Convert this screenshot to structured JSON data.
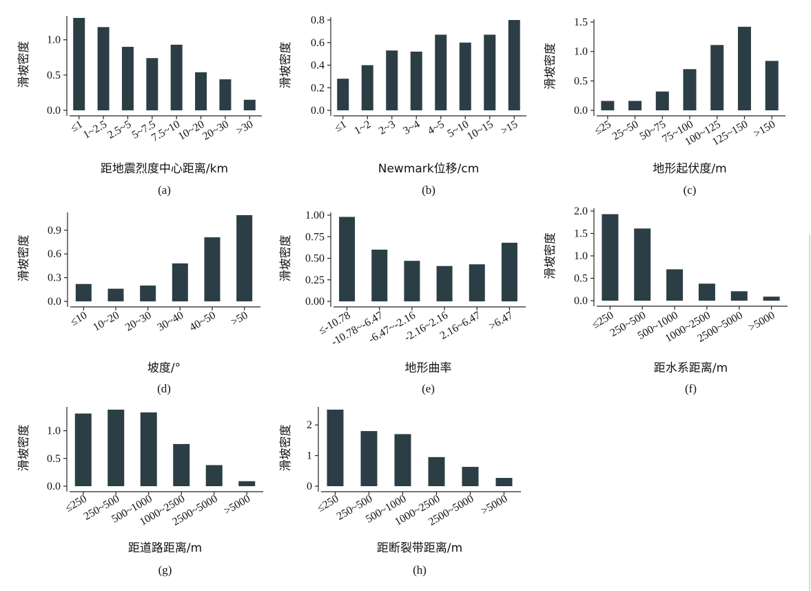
{
  "chart_data": [
    {
      "type": "bar",
      "tag": "(a)",
      "xlabel": "距地震烈度中心距离/km",
      "ylabel": "滑坡密度",
      "categories": [
        "≤1",
        "1~2.5",
        "2.5~5",
        "5~7.5",
        "7.5~10",
        "10~20",
        "20~30",
        ">30"
      ],
      "values": [
        1.31,
        1.18,
        0.9,
        0.74,
        0.93,
        0.54,
        0.44,
        0.15
      ],
      "ylim": [
        0,
        1.3
      ],
      "yticks": [
        "0.0",
        "0.5",
        "1.0"
      ],
      "grid": false
    },
    {
      "type": "bar",
      "tag": "(b)",
      "xlabel": "Newmark位移/cm",
      "ylabel": "滑坡密度",
      "categories": [
        "≤1",
        "1~2",
        "2~3",
        "3~4",
        "4~5",
        "5~10",
        "10~15",
        ">15"
      ],
      "values": [
        0.28,
        0.4,
        0.53,
        0.52,
        0.67,
        0.6,
        0.67,
        0.8
      ],
      "ylim": [
        0,
        0.8
      ],
      "yticks": [
        "0.0",
        "0.2",
        "0.4",
        "0.6",
        "0.8"
      ],
      "grid": false
    },
    {
      "type": "bar",
      "tag": "(c)",
      "xlabel": "地形起伏度/m",
      "ylabel": "滑坡密度",
      "categories": [
        "≤25",
        "25~50",
        "50~75",
        "75~100",
        "100~125",
        "125~150",
        ">150"
      ],
      "values": [
        0.16,
        0.16,
        0.32,
        0.7,
        1.11,
        1.42,
        0.84
      ],
      "ylim": [
        0,
        1.5
      ],
      "yticks": [
        "0.0",
        "0.5",
        "1.0",
        "1.5"
      ],
      "grid": false
    },
    {
      "type": "bar",
      "tag": "(d)",
      "xlabel": "坡度/°",
      "ylabel": "滑坡密度",
      "categories": [
        "≤10",
        "10~20",
        "20~30",
        "30~40",
        "40~50",
        ">50"
      ],
      "values": [
        0.22,
        0.16,
        0.2,
        0.48,
        0.81,
        1.09
      ],
      "ylim": [
        0,
        1.09
      ],
      "yticks": [
        "0.0",
        "0.3",
        "0.6",
        "0.9"
      ],
      "grid": false
    },
    {
      "type": "bar",
      "tag": "(e)",
      "xlabel": "地形曲率",
      "ylabel": "滑坡密度",
      "categories": [
        "≤-10.78",
        "-10.78~-6.47",
        "-6.47~-2.16",
        "-2.16~2.16",
        "2.16~6.47",
        ">6.47"
      ],
      "values": [
        0.98,
        0.6,
        0.47,
        0.41,
        0.43,
        0.68
      ],
      "ylim": [
        0,
        1.0
      ],
      "yticks": [
        "0.00",
        "0.25",
        "0.50",
        "0.75",
        "1.00"
      ],
      "grid": false
    },
    {
      "type": "bar",
      "tag": "(f)",
      "xlabel": "距水系距离/m",
      "ylabel": "滑坡密度",
      "categories": [
        "≤250",
        "250~500",
        "500~1000",
        "1000~2500",
        "2500~5000",
        ">5000"
      ],
      "values": [
        1.93,
        1.61,
        0.7,
        0.38,
        0.21,
        0.09
      ],
      "ylim": [
        0,
        2.0
      ],
      "yticks": [
        "0.0",
        "0.5",
        "1.0",
        "1.5",
        "2.0"
      ],
      "grid": false
    },
    {
      "type": "bar",
      "tag": "(g)",
      "xlabel": "距道路距离/m",
      "ylabel": "滑坡密度",
      "categories": [
        "≤250",
        "250~500",
        "500~1000",
        "1000~2500",
        "2500~5000",
        ">5000"
      ],
      "values": [
        1.31,
        1.38,
        1.33,
        0.76,
        0.38,
        0.09
      ],
      "ylim": [
        0,
        1.38
      ],
      "yticks": [
        "0.0",
        "0.5",
        "1.0"
      ],
      "grid": false
    },
    {
      "type": "bar",
      "tag": "(h)",
      "xlabel": "距断裂带距离/m",
      "ylabel": "滑坡密度",
      "categories": [
        "≤250",
        "250~500",
        "500~1000",
        "1000~2500",
        "2500~5000",
        ">5000"
      ],
      "values": [
        2.5,
        1.8,
        1.7,
        0.95,
        0.63,
        0.27
      ],
      "ylim": [
        0,
        2.5
      ],
      "yticks": [
        "0",
        "1",
        "2"
      ],
      "grid": false
    }
  ]
}
